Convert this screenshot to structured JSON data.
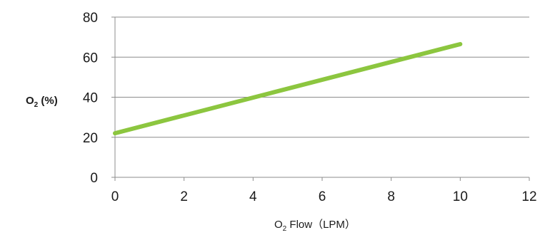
{
  "chart_data": {
    "type": "line",
    "xlabel_parts": {
      "base": "O",
      "subscript": "2",
      "rest": " Flow（LPM）"
    },
    "ylabel_parts": {
      "base": "O",
      "subscript": "2",
      "rest": " (%)"
    },
    "xlim": [
      0,
      12
    ],
    "ylim": [
      0,
      80
    ],
    "x_ticks": [
      "0",
      "2",
      "4",
      "6",
      "8",
      "10",
      "12"
    ],
    "y_ticks": [
      "0",
      "20",
      "40",
      "60",
      "80"
    ],
    "grid": {
      "horizontal": true,
      "vertical": false
    },
    "legend": "none",
    "series": [
      {
        "color": "#8CC63F",
        "x": [
          0,
          10
        ],
        "y": [
          22,
          66.5
        ]
      }
    ]
  }
}
